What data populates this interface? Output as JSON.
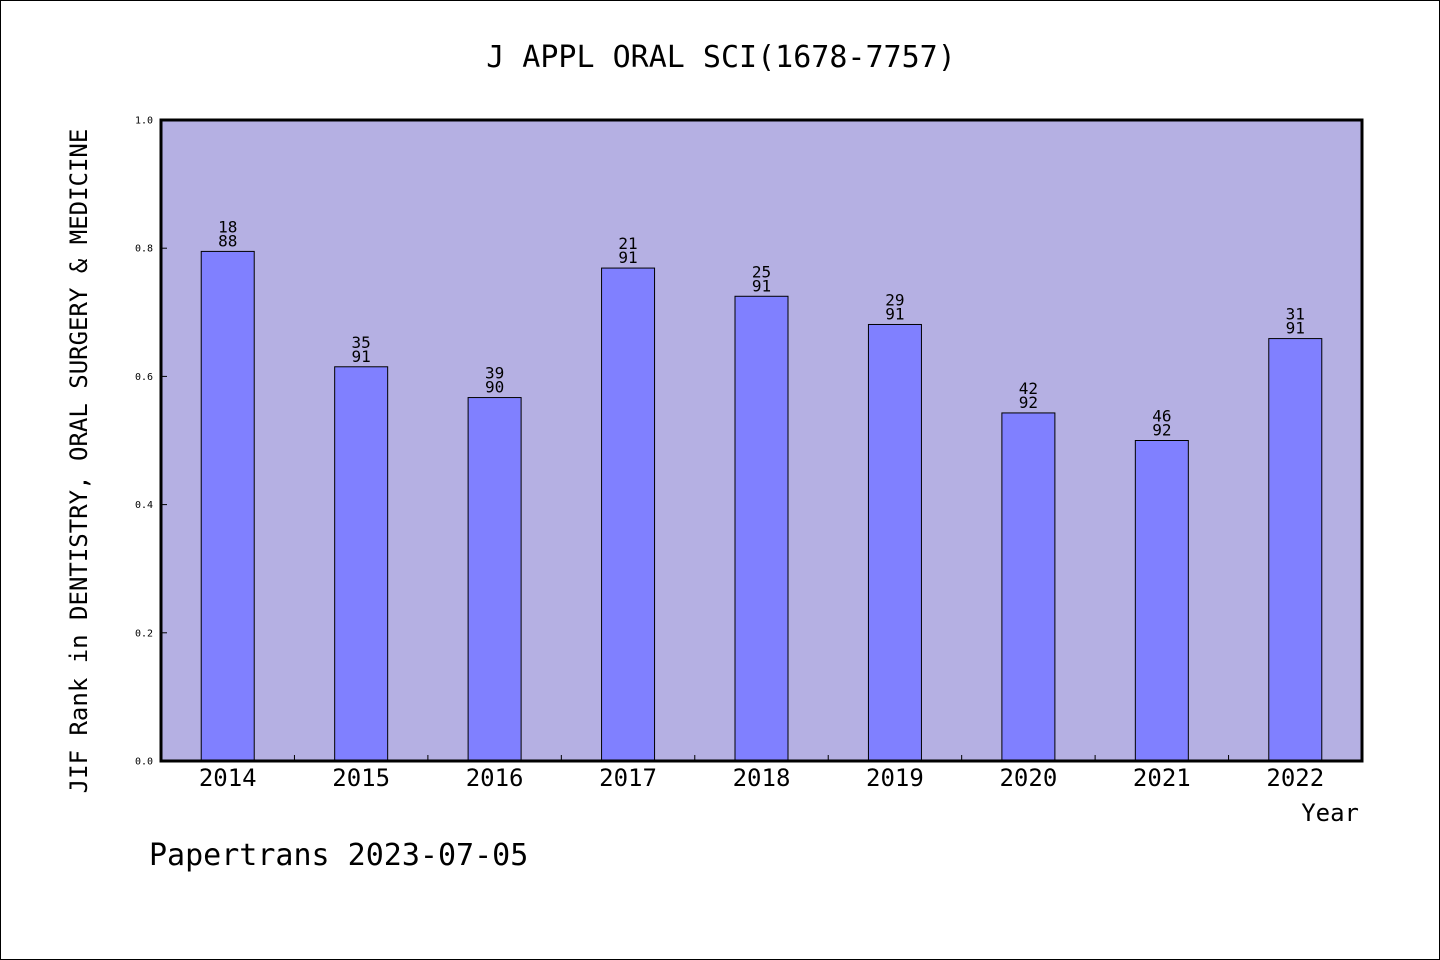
{
  "chart_data": {
    "type": "bar",
    "title": "J APPL ORAL SCI(1678-7757)",
    "xlabel": "Year",
    "ylabel": "JIF Rank in DENTISTRY, ORAL SURGERY & MEDICINE",
    "ylim": [
      0.0,
      1.0
    ],
    "yticks": [
      "0.0",
      "0.2",
      "0.4",
      "0.6",
      "0.8",
      "1.0"
    ],
    "categories": [
      "2014",
      "2015",
      "2016",
      "2017",
      "2018",
      "2019",
      "2020",
      "2021",
      "2022"
    ],
    "values": [
      0.795,
      0.615,
      0.567,
      0.769,
      0.725,
      0.681,
      0.543,
      0.5,
      0.659
    ],
    "rank": [
      "18",
      "35",
      "39",
      "21",
      "25",
      "29",
      "42",
      "46",
      "31"
    ],
    "total": [
      "88",
      "91",
      "90",
      "91",
      "91",
      "91",
      "92",
      "92",
      "91"
    ],
    "grid": false,
    "colors": {
      "plot_bg": "#b5b0e3",
      "bar": "#8080ff",
      "bar_edge": "#000000"
    }
  },
  "footer": {
    "text": "Papertrans 2023-07-05"
  }
}
